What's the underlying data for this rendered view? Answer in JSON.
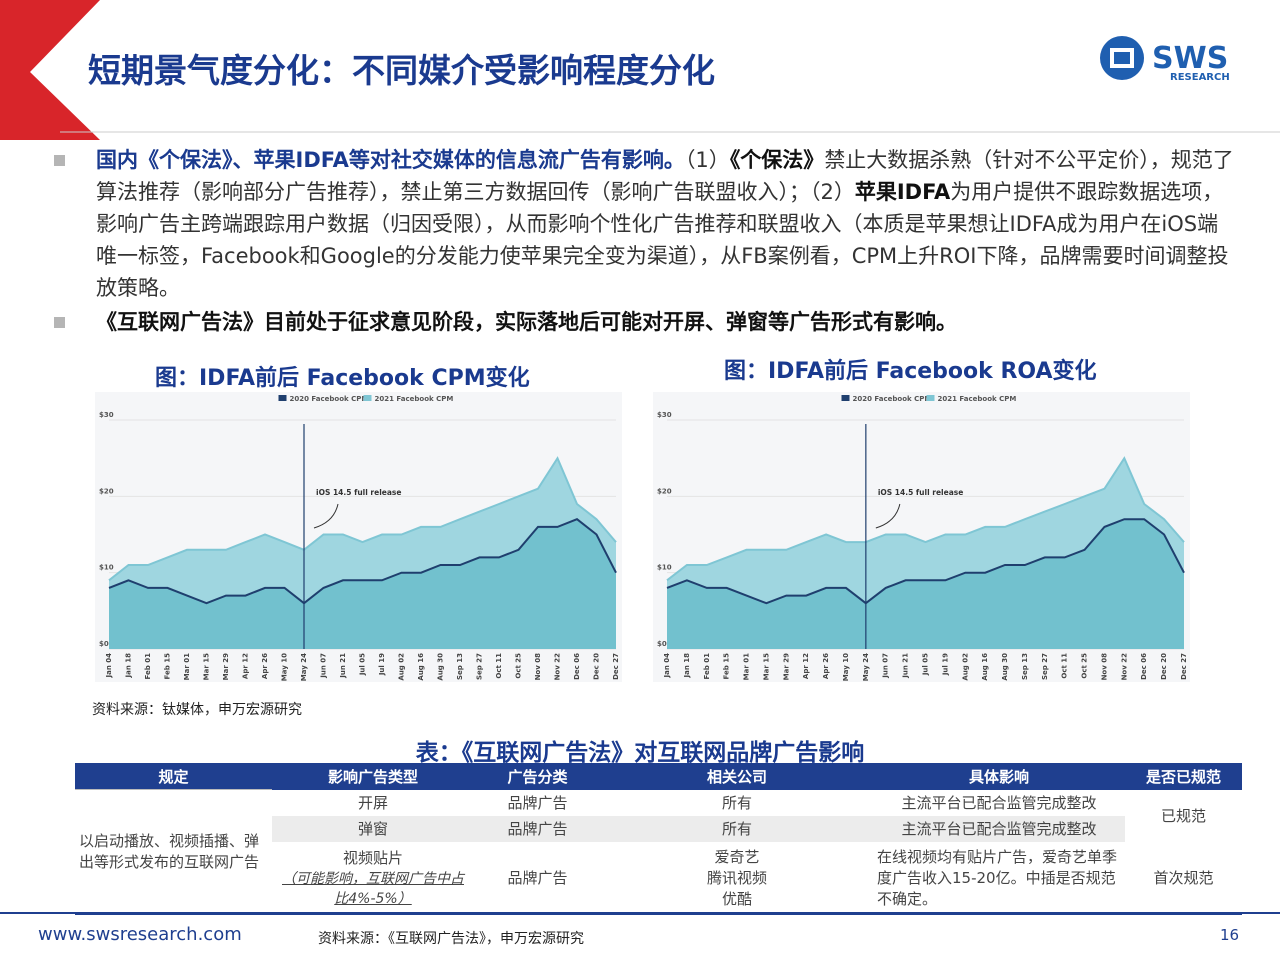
{
  "header": {
    "title": "短期景气度分化：不同媒介受影响程度分化",
    "logo": "SWS",
    "logo_sub": "RESEARCH"
  },
  "bullets": [
    [
      {
        "text": "国内《个保法》、苹果IDFA等对社交媒体的信息流广告有影响。",
        "style": "lead"
      },
      {
        "text": "（1）",
        "style": "normal"
      },
      {
        "text": "《个保法》",
        "style": "bold"
      },
      {
        "text": "禁止大数据杀熟（针对不公平定价），规范了算法推荐（影响部分广告推荐），禁止第三方数据回传（影响广告联盟收入）；（2）",
        "style": "normal"
      },
      {
        "text": "苹果IDFA",
        "style": "bold"
      },
      {
        "text": "为用户提供不跟踪数据选项，影响广告主跨端跟踪用户数据（归因受限），从而影响个性化广告推荐和联盟收入（本质是苹果想让IDFA成为用户在iOS端唯一标签，Facebook和Google的分发能力使苹果完全变为渠道），从FB案例看，CPM上升ROI下降，品牌需要时间调整投放策略。",
        "style": "normal"
      }
    ],
    [
      {
        "text": "《互联网广告法》目前处于征求意见阶段，实际落地后可能对开屏、弹窗等广告形式有影响。",
        "style": "bold"
      }
    ]
  ],
  "chart_data": [
    {
      "type": "area",
      "title": "图：IDFA前后 Facebook CPM变化",
      "categories": [
        "Jan 04",
        "Jan 18",
        "Feb 01",
        "Feb 15",
        "Mar 01",
        "Mar 15",
        "Mar 29",
        "Apr 12",
        "Apr 26",
        "May 10",
        "May 24",
        "Jun 07",
        "Jun 21",
        "Jul 05",
        "Jul 19",
        "Aug 02",
        "Aug 16",
        "Aug 30",
        "Sep 13",
        "Sep 27",
        "Oct 11",
        "Oct 25",
        "Nov 08",
        "Nov 22",
        "Dec 06",
        "Dec 20",
        "Dec 27"
      ],
      "series": [
        {
          "name": "2020 Facebook CPM",
          "color": "#1f3f6e",
          "values": [
            8,
            9,
            8,
            8,
            7,
            6,
            7,
            7,
            8,
            8,
            6,
            8,
            9,
            9,
            9,
            10,
            10,
            11,
            11,
            12,
            12,
            13,
            16,
            16,
            17,
            15,
            10
          ]
        },
        {
          "name": "2021 Facebook CPM",
          "color": "#9fd6e0",
          "values": [
            9,
            11,
            11,
            12,
            13,
            13,
            13,
            14,
            15,
            14,
            13,
            15,
            15,
            14,
            15,
            15,
            16,
            16,
            17,
            18,
            19,
            20,
            21,
            25,
            19,
            17,
            14
          ]
        }
      ],
      "ylim": [
        0,
        30
      ],
      "yticks": [
        {
          "value": 0,
          "label": "$0"
        },
        {
          "value": 10,
          "label": "$10"
        },
        {
          "value": 20,
          "label": "$20"
        },
        {
          "value": 30,
          "label": "$30"
        }
      ],
      "annotation": {
        "text": "iOS 14.5 full release",
        "x": "May 24"
      }
    },
    {
      "type": "area",
      "title": "图：IDFA前后 Facebook ROA变化",
      "categories": [
        "Jan 04",
        "Jan 18",
        "Feb 01",
        "Feb 15",
        "Mar 01",
        "Mar 15",
        "Mar 29",
        "Apr 12",
        "Apr 26",
        "May 10",
        "May 24",
        "Jun 07",
        "Jun 21",
        "Jul 05",
        "Jul 19",
        "Aug 02",
        "Aug 16",
        "Aug 30",
        "Sep 13",
        "Sep 27",
        "Oct 11",
        "Oct 25",
        "Nov 08",
        "Nov 22",
        "Dec 06",
        "Dec 20",
        "Dec 27"
      ],
      "series": [
        {
          "name": "2020 Facebook CPM",
          "color": "#1f3f6e",
          "values": [
            8,
            9,
            8,
            8,
            7,
            6,
            7,
            7,
            8,
            8,
            6,
            8,
            9,
            9,
            9,
            10,
            10,
            11,
            11,
            12,
            12,
            13,
            16,
            17,
            17,
            15,
            10
          ]
        },
        {
          "name": "2021 Facebook CPM",
          "color": "#9fd6e0",
          "values": [
            9,
            11,
            11,
            12,
            13,
            13,
            13,
            14,
            15,
            14,
            14,
            15,
            15,
            14,
            15,
            15,
            16,
            16,
            17,
            18,
            19,
            20,
            21,
            25,
            19,
            17,
            14
          ]
        }
      ],
      "ylim": [
        0,
        30
      ],
      "yticks": [
        {
          "value": 0,
          "label": "$0"
        },
        {
          "value": 10,
          "label": "$10"
        },
        {
          "value": 20,
          "label": "$20"
        },
        {
          "value": 30,
          "label": "$30"
        }
      ],
      "annotation": {
        "text": "iOS 14.5 full release",
        "x": "May 24"
      }
    }
  ],
  "chart_source": "资料来源：钛媒体，申万宏源研究",
  "table": {
    "title": "表：《互联网广告法》对互联网品牌广告影响",
    "header": [
      "规定",
      "影响广告类型",
      "广告分类",
      "相关公司",
      "具体影响",
      "是否已规范"
    ],
    "rule": "以启动播放、视频插播、弹出等形式发布的互联网广告",
    "rows": [
      [
        "开屏",
        "品牌广告",
        "所有",
        "主流平台已配合监管完成整改"
      ],
      [
        "弹窗",
        "品牌广告",
        "所有",
        "主流平台已配合监管完成整改"
      ],
      [
        "视频贴片",
        "品牌广告",
        [
          "爱奇艺",
          "腾讯视频",
          "优酷"
        ],
        "在线视频均有贴片广告，爱奇艺单季度广告收入15-20亿。中插是否规范不确定。"
      ]
    ],
    "row3_note": "（可能影响，互联网广告中占比4%-5%）",
    "status": [
      "已规范",
      "首次规范"
    ]
  },
  "footer": {
    "site": "www.swsresearch.com",
    "source": "资料来源：《互联网广告法》，申万宏源研究",
    "page": "16"
  }
}
